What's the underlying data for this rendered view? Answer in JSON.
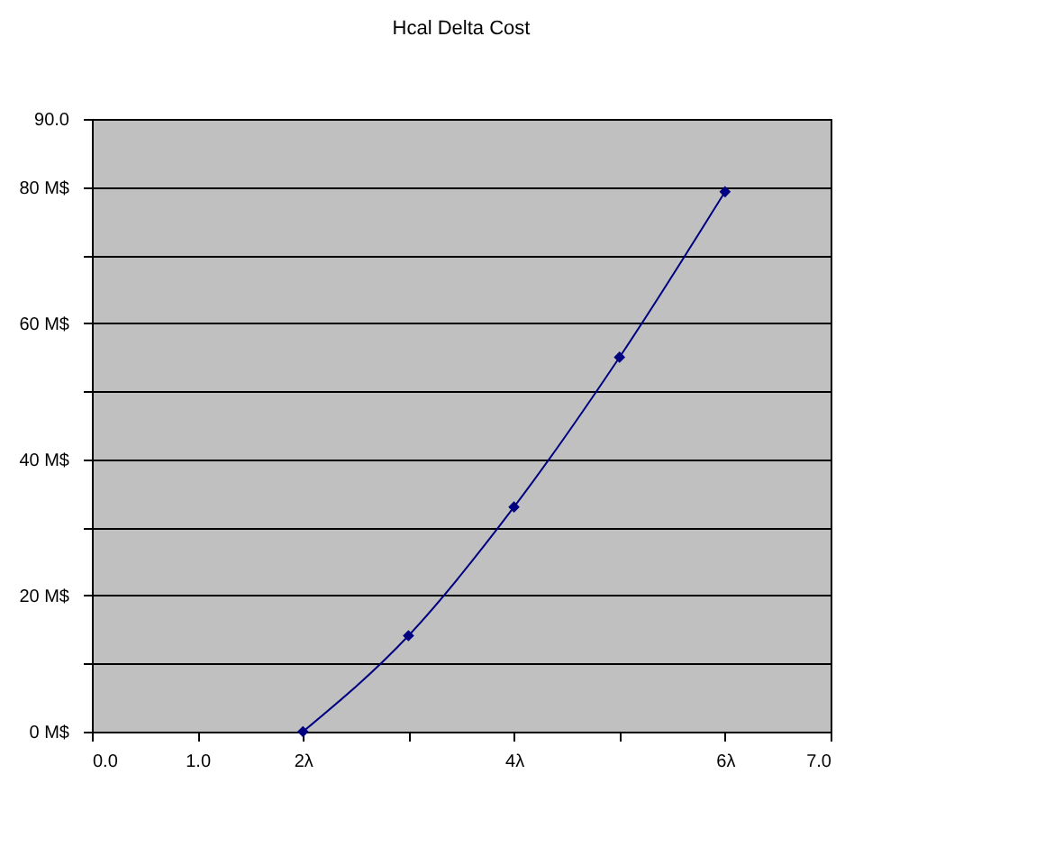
{
  "chart_data": {
    "type": "line",
    "title": "Hcal Delta Cost",
    "x": [
      2,
      3,
      4,
      5,
      6
    ],
    "series": [
      {
        "color": "#000080",
        "values": [
          0,
          14.1,
          33.0,
          55.0,
          79.3
        ]
      }
    ],
    "xlim": [
      0,
      7
    ],
    "xticks": [
      {
        "value": 0,
        "label": "0.0"
      },
      {
        "value": 1,
        "label": "1.0"
      },
      {
        "value": 2,
        "label": "2λ"
      },
      {
        "value": 3,
        "label": null
      },
      {
        "value": 4,
        "label": "4λ"
      },
      {
        "value": 5,
        "label": null
      },
      {
        "value": 6,
        "label": "6λ"
      },
      {
        "value": 7,
        "label": "7.0"
      }
    ],
    "ylim": [
      0,
      90
    ],
    "yticks": [
      {
        "value": 0,
        "label": "0 M$"
      },
      {
        "value": 10,
        "label": null
      },
      {
        "value": 20,
        "label": "20 M$"
      },
      {
        "value": 30,
        "label": null
      },
      {
        "value": 40,
        "label": "40 M$"
      },
      {
        "value": 50,
        "label": null
      },
      {
        "value": 60,
        "label": "60 M$"
      },
      {
        "value": 70,
        "label": null
      },
      {
        "value": 80,
        "label": "80 M$"
      },
      {
        "value": 90,
        "label": "90.0"
      }
    ],
    "grid": "y",
    "marker": "diamond",
    "line_style": "solid"
  }
}
